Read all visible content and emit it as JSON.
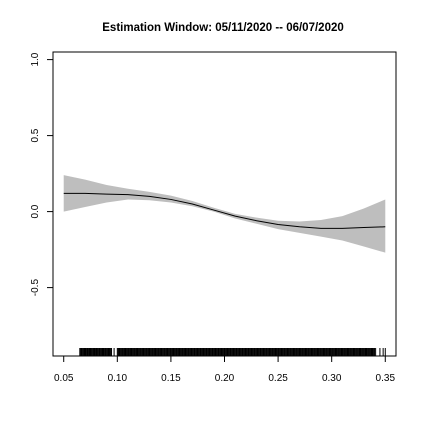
{
  "chart_data": {
    "type": "line",
    "title": "Estimation Window: 05/11/2020 -- 06/07/2020",
    "xlabel": "",
    "ylabel": "",
    "xlim": [
      0.04,
      0.36
    ],
    "ylim": [
      -0.95,
      1.05
    ],
    "x_ticks": [
      0.05,
      0.1,
      0.15,
      0.2,
      0.25,
      0.3,
      0.35
    ],
    "x_tick_labels": [
      "0.05",
      "0.10",
      "0.15",
      "0.20",
      "0.25",
      "0.30",
      "0.35"
    ],
    "y_ticks": [
      -0.5,
      0.0,
      0.5,
      1.0
    ],
    "y_tick_labels": [
      "-0.5",
      "0.0",
      "0.5",
      "1.0"
    ],
    "grid": false,
    "legend": "none",
    "series": [
      {
        "role": "fit",
        "x": [
          0.05,
          0.07,
          0.09,
          0.11,
          0.13,
          0.15,
          0.17,
          0.19,
          0.21,
          0.23,
          0.25,
          0.27,
          0.29,
          0.31,
          0.33,
          0.35
        ],
        "y": [
          0.12,
          0.12,
          0.115,
          0.112,
          0.1,
          0.08,
          0.05,
          0.01,
          -0.03,
          -0.06,
          -0.085,
          -0.1,
          -0.11,
          -0.11,
          -0.105,
          -0.1
        ],
        "color": "#000000"
      },
      {
        "role": "confidence_band",
        "x": [
          0.05,
          0.07,
          0.09,
          0.11,
          0.13,
          0.15,
          0.17,
          0.19,
          0.21,
          0.23,
          0.25,
          0.27,
          0.29,
          0.31,
          0.33,
          0.35
        ],
        "lower": [
          0.0,
          0.03,
          0.06,
          0.08,
          0.075,
          0.06,
          0.035,
          0.0,
          -0.045,
          -0.08,
          -0.115,
          -0.14,
          -0.165,
          -0.19,
          -0.23,
          -0.27
        ],
        "upper": [
          0.24,
          0.21,
          0.175,
          0.15,
          0.13,
          0.105,
          0.07,
          0.025,
          -0.015,
          -0.04,
          -0.06,
          -0.065,
          -0.055,
          -0.03,
          0.02,
          0.08
        ],
        "color": "#bebebe"
      }
    ],
    "rug": {
      "segments": [
        [
          0.065,
          0.095
        ],
        [
          0.1,
          0.34
        ]
      ],
      "isolated": [
        0.066,
        0.07,
        0.074,
        0.079,
        0.083,
        0.087,
        0.092,
        0.097,
        0.341,
        0.345,
        0.348,
        0.35
      ],
      "dense_step": 0.0008
    }
  }
}
